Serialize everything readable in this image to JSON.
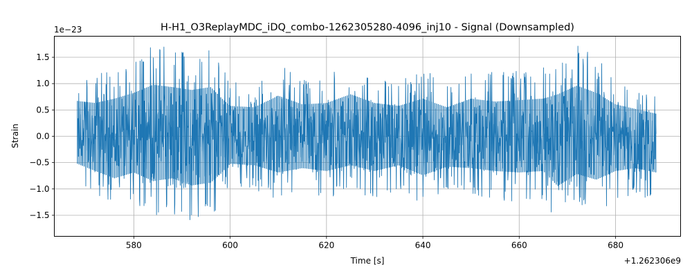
{
  "chart_data": {
    "type": "line",
    "title": "H-H1_O3ReplayMDC_iDQ_combo-1262305280-4096_inj10 - Signal (Downsampled)",
    "xlabel": "Time [s]",
    "ylabel": "Strain",
    "x_offset_label": "+1.262306e9",
    "y_scale_label": "1e−23",
    "xlim": [
      563.5,
      693.5
    ],
    "ylim": [
      -1.9,
      1.9
    ],
    "x_ticks": [
      580,
      600,
      620,
      640,
      660,
      680
    ],
    "y_ticks": [
      -1.5,
      -1.0,
      -0.5,
      0.0,
      0.5,
      1.0,
      1.5
    ],
    "y_tick_labels": [
      "−1.5",
      "−1.0",
      "−0.5",
      "0.0",
      "0.5",
      "1.0",
      "1.5"
    ],
    "grid": true,
    "series": [
      {
        "color": "#1f77b4",
        "x_range": [
          568.3,
          688.4
        ],
        "envelope": [
          {
            "x": 568.3,
            "min": -0.95,
            "max": 1.22
          },
          {
            "x": 572,
            "min": -1.2,
            "max": 1.15
          },
          {
            "x": 576,
            "min": -1.45,
            "max": 1.3
          },
          {
            "x": 580,
            "min": -1.25,
            "max": 1.5
          },
          {
            "x": 584,
            "min": -1.55,
            "max": 1.78
          },
          {
            "x": 588,
            "min": -1.45,
            "max": 1.7
          },
          {
            "x": 592,
            "min": -1.7,
            "max": 1.6
          },
          {
            "x": 596,
            "min": -1.6,
            "max": 1.7
          },
          {
            "x": 598,
            "min": -1.3,
            "max": 1.35
          },
          {
            "x": 600,
            "min": -0.95,
            "max": 1.05
          },
          {
            "x": 605,
            "min": -1.0,
            "max": 1.0
          },
          {
            "x": 610,
            "min": -1.25,
            "max": 1.4
          },
          {
            "x": 615,
            "min": -1.1,
            "max": 1.1
          },
          {
            "x": 620,
            "min": -1.2,
            "max": 1.15
          },
          {
            "x": 625,
            "min": -1.0,
            "max": 1.45
          },
          {
            "x": 630,
            "min": -1.2,
            "max": 1.15
          },
          {
            "x": 635,
            "min": -1.0,
            "max": 1.05
          },
          {
            "x": 640,
            "min": -1.35,
            "max": 1.3
          },
          {
            "x": 645,
            "min": -1.05,
            "max": 1.0
          },
          {
            "x": 650,
            "min": -1.1,
            "max": 1.3
          },
          {
            "x": 655,
            "min": -1.2,
            "max": 1.2
          },
          {
            "x": 660,
            "min": -1.25,
            "max": 1.25
          },
          {
            "x": 665,
            "min": -1.2,
            "max": 1.3
          },
          {
            "x": 668,
            "min": -1.72,
            "max": 1.45
          },
          {
            "x": 672,
            "min": -1.3,
            "max": 1.75
          },
          {
            "x": 676,
            "min": -1.5,
            "max": 1.5
          },
          {
            "x": 680,
            "min": -1.2,
            "max": 1.1
          },
          {
            "x": 684,
            "min": -1.1,
            "max": 0.95
          },
          {
            "x": 688.4,
            "min": -1.25,
            "max": 0.78
          }
        ]
      }
    ]
  }
}
